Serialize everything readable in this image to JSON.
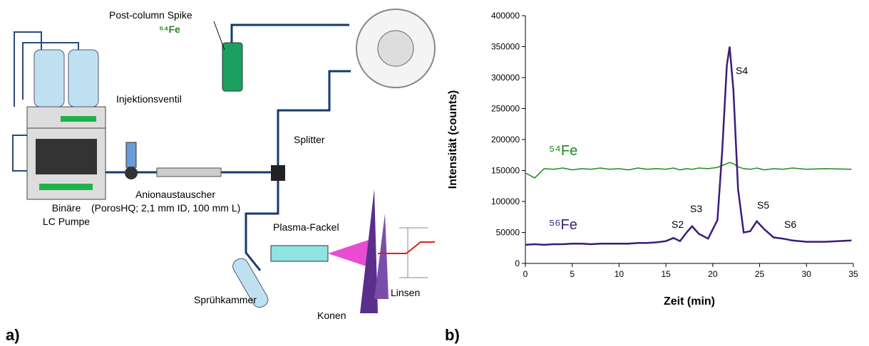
{
  "diagram": {
    "panel_label": "a)",
    "spike_label": "Post-column Spike",
    "spike_isotope": "⁵⁴Fe",
    "valve_label": "Injektionsventil",
    "splitter_label": "Splitter",
    "column_label": "Anionaustauscher",
    "column_detail": "(PorosHQ; 2,1 mm ID, 100 mm L)",
    "pump_label_1": "Binäre",
    "pump_label_2": "LC Pumpe",
    "torch_label": "Plasma-Fackel",
    "chamber_label": "Sprühkammer",
    "cones_label": "Konen",
    "lens_label": "Linsen"
  },
  "chart_data": {
    "type": "line",
    "panel_label": "b)",
    "xlabel": "Zeit (min)",
    "ylabel": "Intensität (counts)",
    "x": [
      0,
      1,
      2,
      3,
      4,
      5,
      6,
      7,
      8,
      9,
      10,
      11,
      12,
      13,
      14,
      15,
      15.8,
      16.5,
      17.2,
      17.8,
      18.5,
      19.5,
      20.5,
      21,
      21.5,
      21.8,
      22.2,
      22.7,
      23.3,
      24,
      24.7,
      25.5,
      26.5,
      27.5,
      28.5,
      30,
      32,
      34.8
    ],
    "series": [
      {
        "name": "⁵⁴Fe",
        "color": "#1e8a1e",
        "values": [
          146000,
          138000,
          153000,
          152000,
          154000,
          151000,
          153000,
          152000,
          154000,
          152000,
          153000,
          151000,
          154000,
          152000,
          153000,
          152000,
          154000,
          151000,
          153000,
          152000,
          154000,
          153000,
          155000,
          158000,
          161000,
          163000,
          161000,
          156000,
          153000,
          152000,
          154000,
          151000,
          153000,
          152000,
          154000,
          152000,
          153000,
          152000
        ]
      },
      {
        "name": "⁵⁶Fe",
        "color": "#3b1c7a",
        "values": [
          30000,
          31000,
          30000,
          31000,
          31000,
          32000,
          32000,
          31000,
          32000,
          32000,
          32000,
          32000,
          33000,
          33000,
          34000,
          36000,
          41000,
          36000,
          50000,
          60000,
          48000,
          40000,
          70000,
          180000,
          320000,
          350000,
          280000,
          120000,
          50000,
          52000,
          68000,
          55000,
          42000,
          40000,
          37000,
          35000,
          35000,
          37000
        ]
      }
    ],
    "annotations": [
      "S2",
      "S3",
      "S4",
      "S5",
      "S6"
    ],
    "xlim": [
      0,
      35
    ],
    "ylim": [
      0,
      400000
    ],
    "xticks": [
      0,
      5,
      10,
      15,
      20,
      25,
      30,
      35
    ],
    "yticks": [
      0,
      50000,
      100000,
      150000,
      200000,
      250000,
      300000,
      350000,
      400000
    ]
  }
}
